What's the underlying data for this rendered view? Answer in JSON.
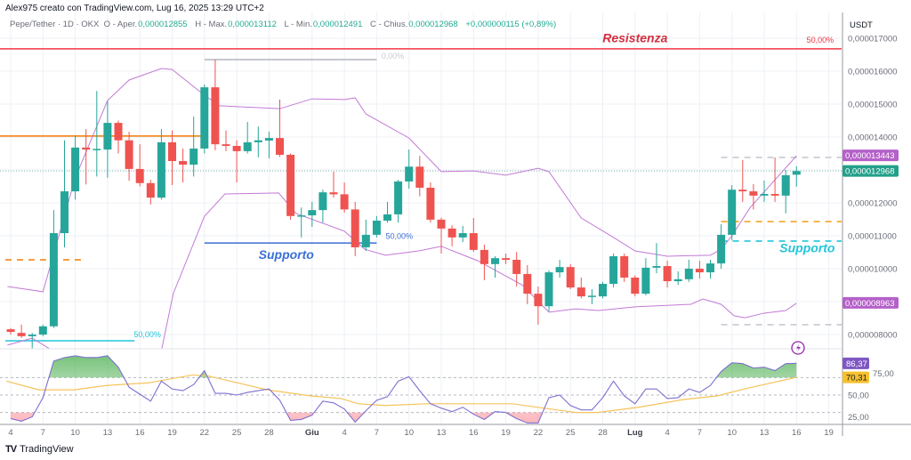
{
  "header": {
    "author_line": "Alex975 creato con TradingView.com, Lug 16, 2025 13:29 UTC+2",
    "symbol": "Pepe/Tether · 1D · OKX",
    "o_label": "O - Aper.",
    "o": "0,000012855",
    "h_label": "H - Max.",
    "h": "0,000013112",
    "l_label": "L - Min.",
    "l": "0,000012491",
    "c_label": "C - Chius.",
    "c": "0,000012968",
    "change": "+0,000000115 (+0,89%)"
  },
  "axis": {
    "currency": "USDT",
    "price_ticks": [
      {
        "v": 17,
        "label": "0,000017000"
      },
      {
        "v": 16,
        "label": "0,000016000"
      },
      {
        "v": 15,
        "label": "0,000015000"
      },
      {
        "v": 14,
        "label": "0,000014000"
      },
      {
        "v": 12,
        "label": "0,000012000"
      },
      {
        "v": 11,
        "label": "0,000011000"
      },
      {
        "v": 10,
        "label": "0,000010000"
      },
      {
        "v": 8,
        "label": "0,000008000"
      }
    ],
    "rsi_ticks": [
      {
        "v": 75,
        "label": "75,00"
      },
      {
        "v": 50,
        "label": "50,00"
      },
      {
        "v": 25,
        "label": "25,00"
      }
    ],
    "price_tags": [
      {
        "v": 13.443,
        "label": "0,000013443",
        "color": "#b561c9"
      },
      {
        "v": 12.968,
        "label": "0,000012968",
        "color": "#22a08a"
      },
      {
        "v": 8.963,
        "label": "0,000008963",
        "color": "#b561c9"
      }
    ],
    "rsi_tags": [
      {
        "v": 86.37,
        "label": "86,37",
        "color": "#7e57c2",
        "text_color": "#ffffff"
      },
      {
        "v": 70.31,
        "label": "70,31",
        "color": "#f7c12e",
        "text_color": "#131722"
      }
    ],
    "x_labels": [
      {
        "i": 0,
        "label": "4"
      },
      {
        "i": 3,
        "label": "7"
      },
      {
        "i": 6,
        "label": "10"
      },
      {
        "i": 9,
        "label": "13"
      },
      {
        "i": 12,
        "label": "16"
      },
      {
        "i": 15,
        "label": "19"
      },
      {
        "i": 18,
        "label": "22"
      },
      {
        "i": 21,
        "label": "25"
      },
      {
        "i": 24,
        "label": "28"
      },
      {
        "i": 28,
        "label": "Giu",
        "bold": true
      },
      {
        "i": 31,
        "label": "4"
      },
      {
        "i": 34,
        "label": "7"
      },
      {
        "i": 37,
        "label": "10"
      },
      {
        "i": 40,
        "label": "13"
      },
      {
        "i": 43,
        "label": "16"
      },
      {
        "i": 46,
        "label": "19"
      },
      {
        "i": 49,
        "label": "22"
      },
      {
        "i": 52,
        "label": "25"
      },
      {
        "i": 55,
        "label": "28"
      },
      {
        "i": 58,
        "label": "Lug",
        "bold": true
      },
      {
        "i": 61,
        "label": "4"
      },
      {
        "i": 64,
        "label": "7"
      },
      {
        "i": 67,
        "label": "10"
      },
      {
        "i": 70,
        "label": "13"
      },
      {
        "i": 73,
        "label": "16"
      },
      {
        "i": 76,
        "label": "19"
      }
    ]
  },
  "colors": {
    "up": "#26a69a",
    "down": "#ef5350",
    "band": "#c27ad6",
    "rsi": "#7e6fd0",
    "rsi_ma": "#f5c35a",
    "grid": "#eef0f5"
  },
  "chart_data": {
    "type": "candlestick",
    "title": "Pepe/Tether · 1D · OKX",
    "unit": "USDT x 1e-6",
    "ylim": [
      7.4,
      17.4
    ],
    "candles": [
      [
        8.16,
        8.2,
        8.0,
        8.08
      ],
      [
        8.05,
        8.3,
        7.9,
        7.95
      ],
      [
        7.95,
        8.05,
        7.57,
        8.0
      ],
      [
        8.0,
        8.3,
        7.95,
        8.25
      ],
      [
        8.25,
        11.78,
        8.2,
        11.08
      ],
      [
        11.08,
        13.9,
        10.65,
        12.35
      ],
      [
        12.35,
        14.05,
        12.1,
        13.68
      ],
      [
        13.68,
        14.24,
        12.56,
        13.62
      ],
      [
        13.62,
        15.4,
        12.8,
        13.64
      ],
      [
        13.62,
        15.1,
        12.76,
        14.43
      ],
      [
        14.43,
        14.5,
        13.5,
        13.9
      ],
      [
        13.9,
        14.16,
        12.67,
        13.03
      ],
      [
        13.03,
        13.78,
        12.5,
        12.6
      ],
      [
        12.6,
        12.7,
        11.95,
        12.16
      ],
      [
        12.16,
        14.24,
        12.1,
        13.84
      ],
      [
        13.84,
        14.2,
        12.54,
        13.27
      ],
      [
        13.27,
        13.65,
        12.62,
        13.16
      ],
      [
        13.16,
        14.62,
        12.8,
        13.65
      ],
      [
        13.65,
        15.6,
        13.5,
        15.51
      ],
      [
        15.51,
        16.35,
        13.6,
        13.78
      ],
      [
        13.78,
        14.2,
        13.57,
        13.73
      ],
      [
        13.73,
        13.9,
        12.62,
        13.57
      ],
      [
        13.57,
        14.46,
        13.5,
        13.84
      ],
      [
        13.84,
        14.32,
        13.38,
        13.9
      ],
      [
        13.89,
        14.16,
        13.35,
        13.97
      ],
      [
        13.97,
        15.14,
        13.4,
        13.46
      ],
      [
        13.46,
        13.5,
        11.49,
        11.6
      ],
      [
        11.6,
        11.86,
        10.95,
        11.62
      ],
      [
        11.62,
        12.03,
        11.27,
        11.78
      ],
      [
        11.78,
        12.4,
        11.4,
        12.32
      ],
      [
        12.32,
        12.95,
        12.16,
        12.26
      ],
      [
        12.26,
        12.62,
        11.7,
        11.8
      ],
      [
        11.8,
        12.03,
        10.38,
        10.65
      ],
      [
        10.65,
        11.49,
        10.54,
        11.03
      ],
      [
        11.03,
        11.6,
        10.95,
        11.46
      ],
      [
        11.46,
        12.03,
        11.4,
        11.65
      ],
      [
        11.65,
        12.7,
        11.4,
        12.65
      ],
      [
        12.65,
        13.62,
        12.43,
        13.1
      ],
      [
        13.1,
        13.43,
        12.2,
        12.46
      ],
      [
        12.46,
        12.62,
        11.4,
        11.49
      ],
      [
        11.49,
        11.55,
        10.46,
        11.22
      ],
      [
        11.22,
        11.32,
        10.68,
        10.95
      ],
      [
        10.95,
        11.3,
        10.81,
        11.08
      ],
      [
        11.08,
        11.54,
        10.51,
        10.57
      ],
      [
        10.57,
        10.73,
        9.65,
        10.14
      ],
      [
        10.14,
        10.38,
        9.73,
        10.32
      ],
      [
        10.32,
        10.46,
        10.14,
        10.27
      ],
      [
        10.27,
        10.51,
        9.46,
        9.84
      ],
      [
        9.84,
        10.11,
        8.92,
        9.24
      ],
      [
        9.24,
        9.46,
        8.3,
        8.86
      ],
      [
        8.86,
        9.95,
        8.7,
        9.89
      ],
      [
        9.89,
        10.27,
        9.73,
        10.05
      ],
      [
        10.05,
        10.14,
        9.38,
        9.43
      ],
      [
        9.43,
        9.73,
        9.1,
        9.16
      ],
      [
        9.16,
        9.38,
        8.92,
        9.18
      ],
      [
        9.16,
        9.6,
        9.1,
        9.54
      ],
      [
        9.54,
        10.46,
        9.43,
        10.38
      ],
      [
        10.38,
        10.46,
        9.6,
        9.73
      ],
      [
        9.73,
        9.8,
        9.16,
        9.24
      ],
      [
        9.24,
        10.32,
        9.19,
        10.03
      ],
      [
        10.03,
        10.78,
        9.86,
        10.08
      ],
      [
        10.08,
        10.24,
        9.43,
        9.62
      ],
      [
        9.62,
        9.92,
        9.51,
        9.68
      ],
      [
        9.68,
        10.27,
        9.6,
        10.0
      ],
      [
        10.0,
        10.24,
        9.7,
        9.89
      ],
      [
        9.89,
        10.27,
        9.7,
        10.16
      ],
      [
        10.16,
        11.35,
        10.0,
        11.03
      ],
      [
        11.03,
        12.54,
        10.86,
        12.4
      ],
      [
        12.4,
        13.3,
        12.03,
        12.35
      ],
      [
        12.35,
        12.57,
        11.8,
        12.22
      ],
      [
        12.22,
        12.68,
        12.03,
        12.27
      ],
      [
        12.27,
        13.38,
        12.03,
        12.22
      ],
      [
        12.22,
        13.0,
        11.68,
        12.84
      ],
      [
        12.855,
        13.112,
        12.491,
        12.968
      ]
    ],
    "bollinger": {
      "upper": [
        [
          -0.3,
          9.46
        ],
        [
          3,
          9.3
        ],
        [
          6,
          12.76
        ],
        [
          9,
          15.11
        ],
        [
          11,
          15.73
        ],
        [
          14,
          16.08
        ],
        [
          15,
          16.05
        ],
        [
          18,
          15.27
        ],
        [
          19.4,
          14.95
        ],
        [
          25,
          14.86
        ],
        [
          28,
          15.16
        ],
        [
          31,
          15.14
        ],
        [
          32,
          15.19
        ],
        [
          33,
          14.7
        ],
        [
          37,
          13.97
        ],
        [
          40,
          12.95
        ],
        [
          43,
          12.97
        ],
        [
          46,
          12.84
        ],
        [
          49,
          13.05
        ],
        [
          50,
          12.95
        ],
        [
          53,
          11.54
        ],
        [
          56,
          10.95
        ],
        [
          58,
          10.54
        ],
        [
          61,
          10.38
        ],
        [
          65,
          10.41
        ],
        [
          66,
          10.59
        ],
        [
          67,
          11.0
        ],
        [
          68.7,
          11.86
        ],
        [
          73,
          13.43
        ]
      ],
      "lower": [
        [
          -0.3,
          7.68
        ],
        [
          2,
          7.89
        ],
        [
          4,
          7.49
        ],
        [
          5.6,
          6.54
        ],
        [
          9,
          5.46
        ],
        [
          11.4,
          5.19
        ],
        [
          13.9,
          7.35
        ],
        [
          15.1,
          9.24
        ],
        [
          18,
          11.59
        ],
        [
          19.9,
          12.27
        ],
        [
          24.9,
          12.3
        ],
        [
          26.5,
          11.68
        ],
        [
          31,
          11.14
        ],
        [
          32.9,
          10.59
        ],
        [
          34.8,
          10.41
        ],
        [
          37.9,
          10.54
        ],
        [
          40,
          10.68
        ],
        [
          43.4,
          10.24
        ],
        [
          47.5,
          9.51
        ],
        [
          50,
          8.68
        ],
        [
          52.5,
          8.78
        ],
        [
          54.6,
          8.73
        ],
        [
          58,
          8.84
        ],
        [
          63.2,
          8.92
        ],
        [
          64.3,
          9.08
        ],
        [
          66,
          8.92
        ],
        [
          67.2,
          8.57
        ],
        [
          68.2,
          8.51
        ],
        [
          70,
          8.65
        ],
        [
          72,
          8.73
        ],
        [
          73,
          8.95
        ]
      ]
    },
    "rsi": {
      "values": [
        23,
        20,
        25,
        47,
        89,
        93,
        95,
        93,
        93,
        95,
        82,
        59,
        51,
        43,
        66,
        57,
        55,
        62,
        78,
        52,
        52,
        50,
        53,
        55,
        57,
        44,
        21,
        22,
        27,
        43,
        41,
        34,
        19,
        32,
        44,
        48,
        66,
        71,
        55,
        40,
        35,
        31,
        36,
        28,
        22,
        31,
        30,
        23,
        18,
        18,
        47,
        50,
        38,
        33,
        33,
        47,
        66,
        49,
        40,
        57,
        57,
        46,
        47,
        57,
        53,
        61,
        77,
        87,
        86,
        81,
        82,
        78,
        86,
        86.37
      ],
      "ma": [
        [
          -0.4,
          66
        ],
        [
          2.6,
          56
        ],
        [
          5.9,
          56
        ],
        [
          8.9,
          61
        ],
        [
          12.8,
          64
        ],
        [
          16.9,
          73
        ],
        [
          18.3,
          72
        ],
        [
          21.1,
          64
        ],
        [
          23.8,
          56
        ],
        [
          27.9,
          49
        ],
        [
          30.7,
          46
        ],
        [
          32.3,
          40
        ],
        [
          34.8,
          38
        ],
        [
          38.7,
          40
        ],
        [
          42.2,
          40
        ],
        [
          46.6,
          40
        ],
        [
          49.5,
          35
        ],
        [
          52.5,
          30
        ],
        [
          54.5,
          30
        ],
        [
          58.3,
          36
        ],
        [
          62.6,
          45
        ],
        [
          65.6,
          49
        ],
        [
          68.5,
          58
        ],
        [
          73,
          70.31
        ]
      ],
      "levels": [
        70,
        50,
        30
      ]
    }
  },
  "drawings": {
    "lines": [
      {
        "name": "resistance-line",
        "p": 16.68,
        "from": -1.5,
        "to": 77.5,
        "color": "#f23645",
        "dash": false
      },
      {
        "name": "fib-zero-line",
        "p": 16.35,
        "from": 18,
        "to": 34,
        "color": "#b2b5be",
        "dash": false
      },
      {
        "name": "orange-level-line",
        "p": 14.03,
        "from": -1,
        "to": 18,
        "color": "#f57c00",
        "dash": false
      },
      {
        "name": "orange-dashed-level",
        "p": 10.27,
        "from": -0.5,
        "to": 7,
        "color": "#f57c00",
        "dash": true
      },
      {
        "name": "cyan-level-line",
        "p": 7.81,
        "from": -0.5,
        "to": 11.5,
        "color": "#22c5d8",
        "dash": false
      },
      {
        "name": "support-line",
        "p": 10.78,
        "from": 18,
        "to": 34,
        "color": "#3b6fd6",
        "dash": false
      },
      {
        "name": "gray-dashed-high",
        "p": 13.38,
        "from": 66,
        "to": 77.5,
        "color": "#c8cad0",
        "dash": true
      },
      {
        "name": "orange-dashed-right",
        "p": 11.43,
        "from": 66,
        "to": 77.5,
        "color": "#f5a623",
        "dash": true
      },
      {
        "name": "cyan-dashed-support",
        "p": 10.84,
        "from": 66,
        "to": 77.5,
        "color": "#22c5d8",
        "dash": true
      },
      {
        "name": "gray-dashed-low",
        "p": 8.3,
        "from": 66,
        "to": 77.5,
        "color": "#c8cad0",
        "dash": true
      }
    ],
    "texts": [
      {
        "name": "resistance-label",
        "text": "Resistenza",
        "i": 58,
        "p": 16.88,
        "color": "#d32f3f",
        "kind": "title"
      },
      {
        "name": "resistance-pct",
        "text": "50,00%",
        "i": 75.2,
        "p": 16.86,
        "color": "#f23645",
        "kind": "pct"
      },
      {
        "name": "fib-zero-pct",
        "text": "0,00%",
        "i": 35.5,
        "p": 16.38,
        "color": "#c8cad0",
        "kind": "pct"
      },
      {
        "name": "support-label-left",
        "text": "Supporto",
        "i": 25.6,
        "p": 10.3,
        "color": "#3b6fd6",
        "kind": "title"
      },
      {
        "name": "support-pct-left",
        "text": "50,00%",
        "i": 36.1,
        "p": 10.9,
        "color": "#3b6fd6",
        "kind": "pct"
      },
      {
        "name": "cyan-pct",
        "text": "50,00%",
        "i": 12.7,
        "p": 7.92,
        "color": "#22c5d8",
        "kind": "pct"
      },
      {
        "name": "support-label-right",
        "text": "Supporto",
        "i": 74,
        "p": 10.5,
        "color": "#22c5d8",
        "kind": "title"
      }
    ]
  },
  "branding": {
    "logo_mark": "TV",
    "logo_text": "TradingView"
  }
}
